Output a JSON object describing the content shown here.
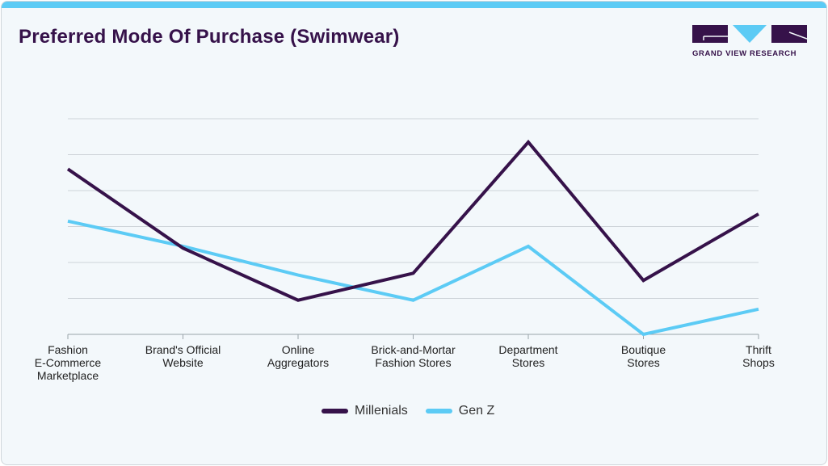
{
  "title": "Preferred Mode Of Purchase (Swimwear)",
  "logo": {
    "text": "GRAND VIEW RESEARCH",
    "colors": {
      "dark": "#36124a",
      "light": "#5ccbf5"
    }
  },
  "chart_data": {
    "type": "line",
    "title": "Preferred Mode Of Purchase (Swimwear)",
    "categories": [
      [
        "Fashion",
        "E-Commerce",
        "Marketplace"
      ],
      [
        "Brand's Official",
        "Website"
      ],
      [
        "Online",
        "Aggregators"
      ],
      [
        "Brick-and-Mortar",
        "Fashion Stores"
      ],
      [
        "Department",
        "Stores"
      ],
      [
        "Boutique",
        "Stores"
      ],
      [
        "Thrift",
        "Shops"
      ]
    ],
    "ylim": [
      0,
      6
    ],
    "grid": true,
    "y_tick_labels_shown": false,
    "legend_position": "bottom",
    "series": [
      {
        "name": "Millenials",
        "color": "#36124a",
        "values": [
          4.6,
          2.4,
          0.95,
          1.7,
          5.35,
          1.5,
          3.35
        ]
      },
      {
        "name": "Gen Z",
        "color": "#5ccbf5",
        "values": [
          3.15,
          2.45,
          1.65,
          0.95,
          2.45,
          0.0,
          0.7
        ]
      }
    ]
  }
}
